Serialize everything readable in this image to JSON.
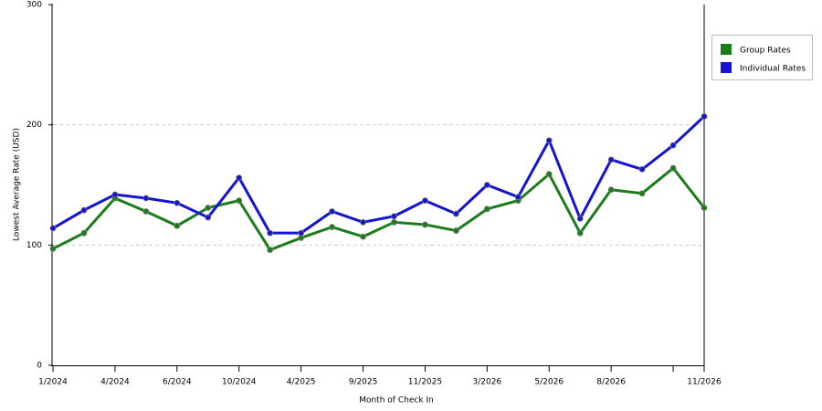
{
  "chart_data": {
    "type": "line",
    "x_label": "Month of Check In",
    "y_label": "Lowest Average Rate (USD)",
    "categories": [
      "1/2024",
      null,
      "4/2024",
      null,
      "6/2024",
      null,
      "10/2024",
      null,
      "4/2025",
      null,
      "9/2025",
      null,
      "11/2025",
      null,
      "3/2026",
      null,
      "5/2026",
      null,
      "8/2026",
      null,
      null,
      "11/2026"
    ],
    "series": [
      {
        "name": "Group Rates",
        "color": "#1a7d1a",
        "values": [
          97,
          110,
          139,
          128,
          116,
          131,
          137,
          96,
          106,
          115,
          107,
          119,
          117,
          112,
          130,
          137,
          159,
          110,
          146,
          143,
          164,
          131
        ]
      },
      {
        "name": "Individual Rates",
        "color": "#1414d2",
        "values": [
          114,
          129,
          142,
          139,
          135,
          123,
          156,
          110,
          110,
          128,
          119,
          124,
          137,
          126,
          150,
          140,
          187,
          122,
          171,
          163,
          183,
          207
        ]
      }
    ],
    "ylim": [
      0,
      300
    ],
    "yticks": [
      0,
      100,
      200,
      300
    ],
    "grid": true,
    "legend": "right"
  }
}
